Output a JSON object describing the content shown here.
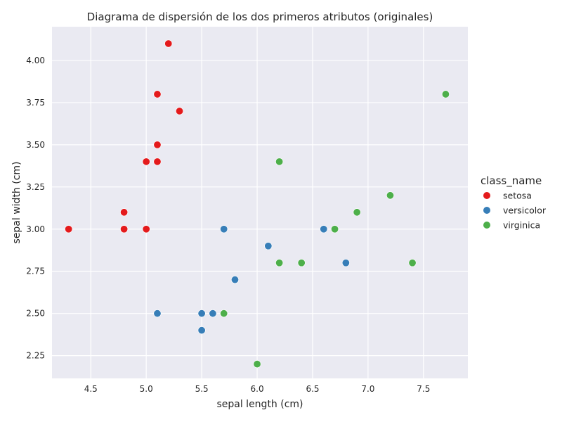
{
  "chart_data": {
    "type": "scatter",
    "title": "Diagrama de dispersión de los dos primeros atributos (originales)",
    "xlabel": "sepal length (cm)",
    "ylabel": "sepal width (cm)",
    "xlim": [
      4.15,
      7.9
    ],
    "ylim": [
      2.115,
      4.2
    ],
    "xticks": [
      4.5,
      5.0,
      5.5,
      6.0,
      6.5,
      7.0,
      7.5
    ],
    "xtick_labels": [
      "4.5",
      "5.0",
      "5.5",
      "6.0",
      "6.5",
      "7.0",
      "7.5"
    ],
    "yticks": [
      2.25,
      2.5,
      2.75,
      3.0,
      3.25,
      3.5,
      3.75,
      4.0
    ],
    "ytick_labels": [
      "2.25",
      "2.50",
      "2.75",
      "3.00",
      "3.25",
      "3.50",
      "3.75",
      "4.00"
    ],
    "grid": true,
    "legend_title": "class_name",
    "legend_position": "right",
    "series": [
      {
        "name": "setosa",
        "color": "#e41a1c",
        "points": [
          [
            5.2,
            4.1
          ],
          [
            5.1,
            3.8
          ],
          [
            5.3,
            3.7
          ],
          [
            5.1,
            3.5
          ],
          [
            5.0,
            3.4
          ],
          [
            5.1,
            3.4
          ],
          [
            4.8,
            3.1
          ],
          [
            4.3,
            3.0
          ],
          [
            4.8,
            3.0
          ],
          [
            5.0,
            3.0
          ]
        ]
      },
      {
        "name": "versicolor",
        "color": "#377eb8",
        "points": [
          [
            5.7,
            3.0
          ],
          [
            6.6,
            3.0
          ],
          [
            6.1,
            2.9
          ],
          [
            6.8,
            2.8
          ],
          [
            5.8,
            2.7
          ],
          [
            5.8,
            2.7
          ],
          [
            5.1,
            2.5
          ],
          [
            5.5,
            2.5
          ],
          [
            5.6,
            2.5
          ],
          [
            5.5,
            2.4
          ]
        ]
      },
      {
        "name": "virginica",
        "color": "#4daf4a",
        "points": [
          [
            7.7,
            3.8
          ],
          [
            6.2,
            3.4
          ],
          [
            7.2,
            3.2
          ],
          [
            6.9,
            3.1
          ],
          [
            6.7,
            3.0
          ],
          [
            6.2,
            2.8
          ],
          [
            6.4,
            2.8
          ],
          [
            7.4,
            2.8
          ],
          [
            5.7,
            2.5
          ],
          [
            6.0,
            2.2
          ]
        ]
      }
    ]
  }
}
